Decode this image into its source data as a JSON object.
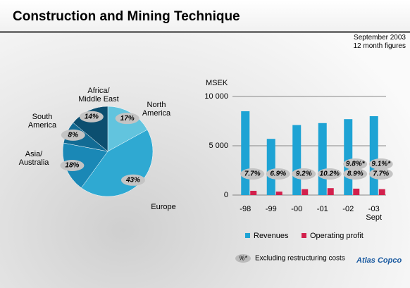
{
  "header": {
    "title": "Construction and Mining Technique",
    "date": "September 2003",
    "note": "12 month figures"
  },
  "chart_data": [
    {
      "type": "pie",
      "categories": [
        "North\nAmerica",
        "Europe",
        "Asia/\nAustralia",
        "South\nAmerica",
        "Africa/\nMiddle East"
      ],
      "values": [
        17,
        43,
        18,
        8,
        14
      ],
      "value_labels": [
        "17%",
        "43%",
        "18%",
        "8%",
        "14%"
      ],
      "colors": [
        "#62c4de",
        "#2fa9d2",
        "#1a88b6",
        "#126b94",
        "#0c4f70"
      ]
    },
    {
      "type": "bar",
      "y_label": "MSEK",
      "categories": [
        "-98",
        "-99",
        "-00",
        "-01",
        "-02",
        "-03\nSept"
      ],
      "series": [
        {
          "name": "Revenues",
          "color": "#1ea3d4",
          "values": [
            8500,
            5700,
            7100,
            7300,
            7700,
            8000
          ]
        },
        {
          "name": "Operating profit",
          "color": "#d2204c",
          "values": [
            430,
            350,
            600,
            700,
            650,
            600
          ]
        }
      ],
      "annotations": [
        "7.7%",
        "6.9%",
        "9.2%",
        "10.2%",
        "8.9%",
        "7.7%",
        "9.8%*",
        "9.1%*"
      ],
      "ylim": [
        0,
        10000
      ],
      "yticks": [
        0,
        {
          "value": 5000,
          "label": "5 000"
        },
        {
          "value": 10000,
          "label": "10 000"
        }
      ],
      "grid": true
    }
  ],
  "footnote": {
    "marker": "%*",
    "text": "Excluding restructuring costs"
  },
  "logo": "Atlas Copco"
}
